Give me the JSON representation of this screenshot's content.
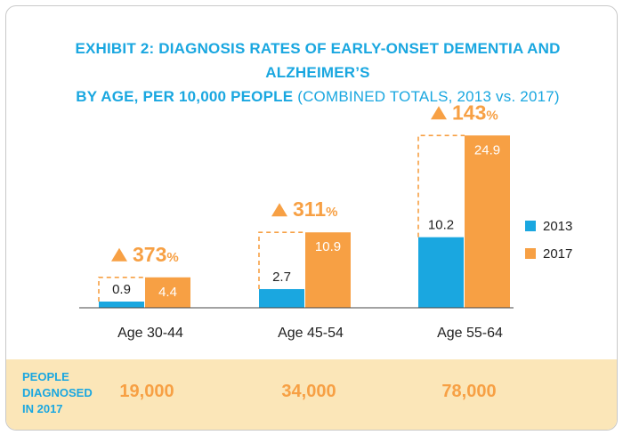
{
  "title": {
    "main": "EXHIBIT 2: DIAGNOSIS RATES OF EARLY-ONSET DEMENTIA AND ALZHEIMER’S",
    "line2_bold": "BY AGE, PER 10,000 PEOPLE",
    "line2_sub": "(COMBINED TOTALS, 2013 vs. 2017)"
  },
  "colors": {
    "series_2013": "#1aa7e0",
    "series_2017": "#f7a044",
    "footer_bg": "#fbe6b8"
  },
  "chart_data": {
    "type": "bar",
    "categories": [
      "Age 30-44",
      "Age 45-54",
      "Age 55-64"
    ],
    "series": [
      {
        "name": "2013",
        "values": [
          0.9,
          2.7,
          10.2
        ]
      },
      {
        "name": "2017",
        "values": [
          4.4,
          10.9,
          24.9
        ]
      }
    ],
    "value_labels": {
      "2013": [
        "0.9",
        "2.7",
        "10.2"
      ],
      "2017": [
        "4.4",
        "10.9",
        "24.9"
      ]
    },
    "increase_labels": [
      "373",
      "311",
      "143"
    ],
    "increase_unit": "%",
    "increase_icon": "up-triangle-icon",
    "legend": {
      "position": "right",
      "labels": [
        "2013",
        "2017"
      ]
    },
    "ylim": [
      0,
      25
    ],
    "grid": false
  },
  "footer": {
    "label_lines": [
      "PEOPLE",
      "DIAGNOSED",
      "IN 2017"
    ],
    "values": [
      "19,000",
      "34,000",
      "78,000"
    ]
  }
}
